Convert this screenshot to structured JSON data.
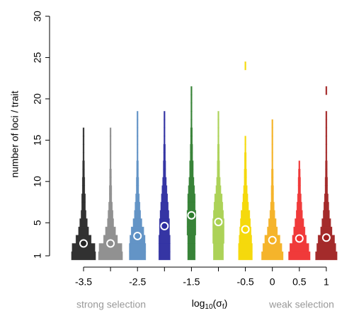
{
  "chart_data": {
    "type": "stacked-histogram",
    "y_label": "number of loci / trait",
    "x_label": [
      "log",
      "10",
      "(σ",
      "f",
      ")"
    ],
    "annotations": [
      "strong selection",
      "weak selection"
    ],
    "categories": [
      "-3.5",
      null,
      "-2.5",
      null,
      "-1.5",
      null,
      "-0.5",
      "0",
      "0.5",
      "1"
    ],
    "ylim": [
      1,
      30
    ],
    "yticks": [
      1,
      5,
      10,
      15,
      20,
      25,
      30
    ],
    "distributions": [
      {
        "color": "#262626",
        "mean": 2.5,
        "values": [
          19,
          18,
          12,
          8,
          6,
          4,
          3,
          3,
          2,
          2,
          1.5,
          1.5,
          1,
          1,
          1,
          1
        ]
      },
      {
        "color": "#8c8c8c",
        "mean": 2.5,
        "values": [
          19,
          18,
          11,
          8,
          5,
          4,
          3,
          2,
          2,
          1.5,
          1.5,
          1,
          1,
          1,
          1,
          1
        ]
      },
      {
        "color": "#5b8fc4",
        "mean": 3.4,
        "values": [
          13,
          13,
          12,
          10,
          7,
          5,
          4,
          3,
          2,
          2,
          1.5,
          1.5,
          1,
          1,
          1,
          1,
          1,
          1
        ]
      },
      {
        "color": "#2b2ba0",
        "mean": 4.6,
        "values": [
          9,
          9,
          9,
          8,
          8,
          7,
          6,
          5,
          4,
          3,
          2,
          2,
          1.5,
          1.5,
          1,
          1,
          1,
          1
        ]
      },
      {
        "color": "#2e7d2e",
        "mean": 5.9,
        "values": [
          6,
          6,
          6,
          7,
          7,
          7,
          6,
          6,
          5,
          4,
          3,
          3,
          2,
          2,
          1.5,
          1.5,
          1,
          1,
          1,
          1,
          1
        ]
      },
      {
        "color": "#a8d050",
        "mean": 5.1,
        "values": [
          8,
          8,
          9,
          9,
          9,
          8,
          7,
          6,
          4,
          3,
          2,
          2,
          1.5,
          1.5,
          1,
          1,
          1,
          1
        ]
      },
      {
        "color": "#f5d800",
        "mean": 4.2,
        "values": [
          11,
          11,
          10,
          9,
          8,
          7,
          5,
          4,
          3,
          2,
          2,
          1.5,
          1.5,
          1,
          1,
          0,
          0,
          0,
          0,
          0,
          0,
          0,
          0,
          1
        ]
      },
      {
        "color": "#f5b020",
        "mean": 2.9,
        "values": [
          17,
          15,
          12,
          8,
          6,
          4,
          3,
          2,
          2,
          1.5,
          1.5,
          1,
          1,
          1,
          1,
          1,
          1
        ]
      },
      {
        "color": "#f03030",
        "mean": 3.1,
        "values": [
          17,
          15,
          11,
          9,
          7,
          5,
          4,
          3,
          2,
          2,
          1.5,
          1
        ]
      },
      {
        "color": "#a02020",
        "mean": 3.2,
        "values": [
          17,
          15,
          13,
          9,
          7,
          5,
          4,
          3,
          2,
          2,
          1.5,
          1.5,
          1,
          1,
          1,
          1,
          1,
          1,
          0,
          0,
          1
        ]
      }
    ]
  }
}
